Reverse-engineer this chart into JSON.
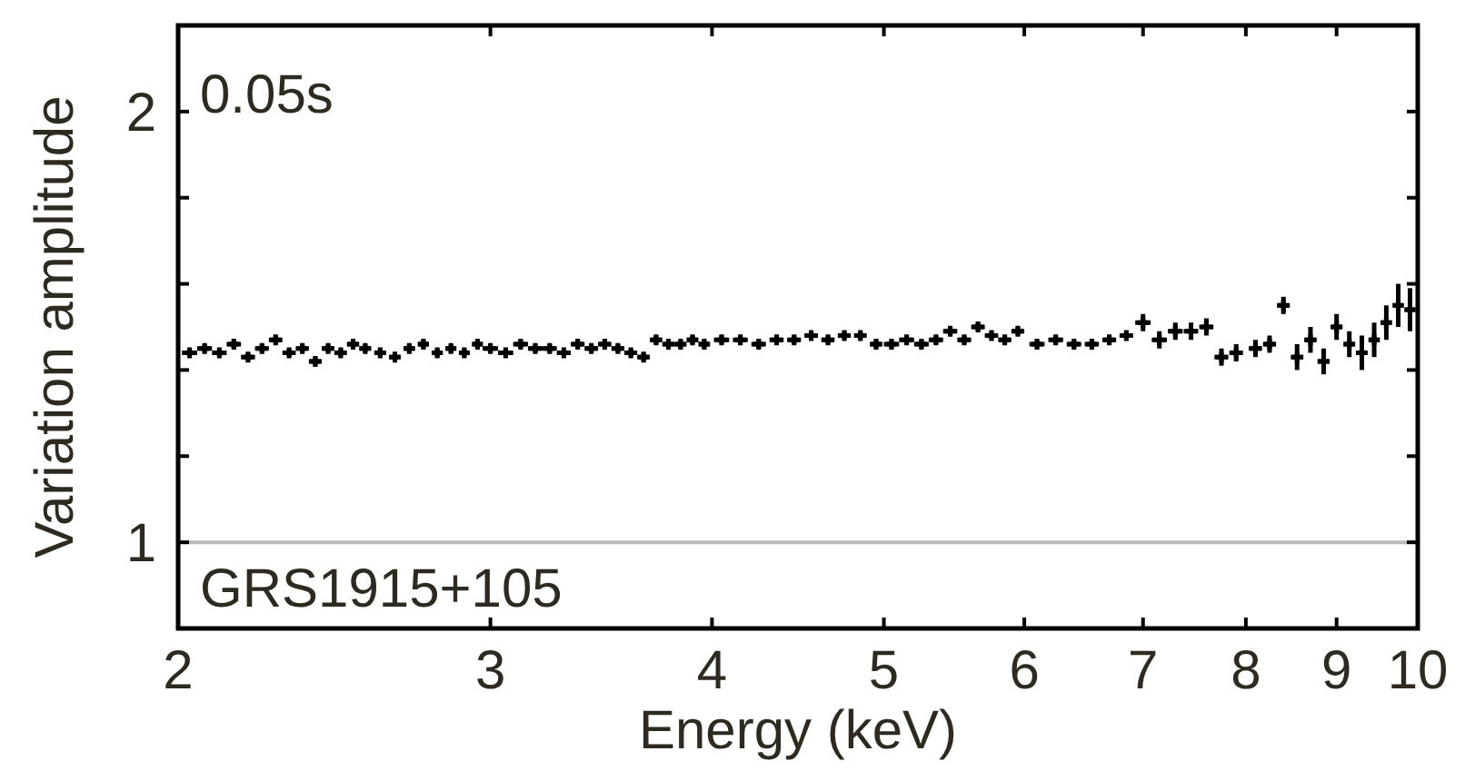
{
  "chart_data": {
    "type": "scatter",
    "xlabel": "Energy (keV)",
    "ylabel": "Variation amplitude",
    "log": "x",
    "xlim": [
      2,
      10
    ],
    "ylim": [
      0.8,
      2.2
    ],
    "xticks": [
      2,
      3,
      4,
      5,
      6,
      7,
      8,
      9,
      10
    ],
    "yticks": [
      1,
      {
        "value": 1.2,
        "label": null
      },
      {
        "value": 1.4,
        "label": null
      },
      {
        "value": 1.6,
        "label": null
      },
      {
        "value": 1.8,
        "label": null
      },
      2
    ],
    "grid": false,
    "marker": "cross",
    "annotations": [
      "0.05s",
      "GRS1915+105"
    ],
    "ref_lines": [
      {
        "axis": "y",
        "value": 1,
        "color": "#bbbbbb"
      }
    ],
    "series": [
      {
        "color": "#000000",
        "x": [
          2.03,
          2.07,
          2.11,
          2.15,
          2.19,
          2.23,
          2.27,
          2.31,
          2.35,
          2.39,
          2.43,
          2.47,
          2.51,
          2.55,
          2.6,
          2.65,
          2.7,
          2.75,
          2.8,
          2.85,
          2.9,
          2.95,
          3.0,
          3.06,
          3.12,
          3.18,
          3.24,
          3.3,
          3.36,
          3.42,
          3.48,
          3.54,
          3.6,
          3.66,
          3.72,
          3.78,
          3.84,
          3.9,
          3.96,
          4.05,
          4.15,
          4.25,
          4.35,
          4.45,
          4.55,
          4.65,
          4.75,
          4.85,
          4.95,
          5.05,
          5.15,
          5.25,
          5.35,
          5.45,
          5.55,
          5.65,
          5.75,
          5.85,
          5.95,
          6.1,
          6.25,
          6.4,
          6.55,
          6.7,
          6.85,
          7.0,
          7.15,
          7.3,
          7.45,
          7.6,
          7.75,
          7.9,
          8.1,
          8.25,
          8.4,
          8.55,
          8.7,
          8.85,
          9.0,
          9.15,
          9.3,
          9.45,
          9.6,
          9.75,
          9.9
        ],
        "values": [
          1.44,
          1.45,
          1.44,
          1.46,
          1.43,
          1.45,
          1.47,
          1.44,
          1.45,
          1.42,
          1.45,
          1.44,
          1.46,
          1.45,
          1.44,
          1.43,
          1.45,
          1.46,
          1.44,
          1.45,
          1.44,
          1.46,
          1.45,
          1.44,
          1.46,
          1.45,
          1.45,
          1.44,
          1.46,
          1.45,
          1.46,
          1.45,
          1.44,
          1.43,
          1.47,
          1.46,
          1.46,
          1.47,
          1.46,
          1.47,
          1.47,
          1.46,
          1.47,
          1.47,
          1.48,
          1.47,
          1.48,
          1.48,
          1.46,
          1.46,
          1.47,
          1.46,
          1.47,
          1.49,
          1.47,
          1.5,
          1.48,
          1.47,
          1.49,
          1.46,
          1.47,
          1.46,
          1.46,
          1.47,
          1.48,
          1.51,
          1.47,
          1.49,
          1.49,
          1.5,
          1.43,
          1.44,
          1.45,
          1.46,
          1.55,
          1.43,
          1.47,
          1.42,
          1.5,
          1.46,
          1.44,
          1.47,
          1.51,
          1.55,
          1.54
        ],
        "errors": [
          0.01,
          0.01,
          0.01,
          0.01,
          0.01,
          0.01,
          0.01,
          0.01,
          0.01,
          0.01,
          0.01,
          0.01,
          0.01,
          0.01,
          0.01,
          0.01,
          0.01,
          0.01,
          0.01,
          0.01,
          0.01,
          0.01,
          0.01,
          0.01,
          0.01,
          0.01,
          0.01,
          0.01,
          0.01,
          0.01,
          0.01,
          0.01,
          0.01,
          0.01,
          0.01,
          0.01,
          0.01,
          0.01,
          0.01,
          0.01,
          0.01,
          0.01,
          0.01,
          0.01,
          0.01,
          0.01,
          0.01,
          0.01,
          0.01,
          0.01,
          0.01,
          0.01,
          0.01,
          0.01,
          0.01,
          0.01,
          0.01,
          0.01,
          0.01,
          0.01,
          0.01,
          0.01,
          0.01,
          0.01,
          0.01,
          0.02,
          0.02,
          0.02,
          0.02,
          0.02,
          0.02,
          0.02,
          0.02,
          0.02,
          0.02,
          0.03,
          0.03,
          0.03,
          0.03,
          0.03,
          0.04,
          0.04,
          0.04,
          0.05,
          0.05
        ],
        "xerrors": [
          0.02,
          0.02,
          0.02,
          0.02,
          0.02,
          0.02,
          0.02,
          0.02,
          0.02,
          0.02,
          0.02,
          0.02,
          0.02,
          0.02,
          0.02,
          0.02,
          0.02,
          0.02,
          0.02,
          0.02,
          0.02,
          0.02,
          0.03,
          0.03,
          0.03,
          0.03,
          0.03,
          0.03,
          0.03,
          0.03,
          0.03,
          0.03,
          0.03,
          0.03,
          0.03,
          0.03,
          0.03,
          0.03,
          0.03,
          0.04,
          0.04,
          0.04,
          0.04,
          0.04,
          0.04,
          0.04,
          0.04,
          0.04,
          0.04,
          0.05,
          0.05,
          0.05,
          0.05,
          0.05,
          0.05,
          0.05,
          0.05,
          0.05,
          0.05,
          0.06,
          0.06,
          0.06,
          0.06,
          0.06,
          0.06,
          0.07,
          0.07,
          0.07,
          0.07,
          0.07,
          0.07,
          0.07,
          0.07,
          0.07,
          0.07,
          0.07,
          0.07,
          0.07,
          0.07,
          0.07,
          0.07,
          0.07,
          0.07,
          0.07,
          0.07
        ]
      }
    ]
  }
}
